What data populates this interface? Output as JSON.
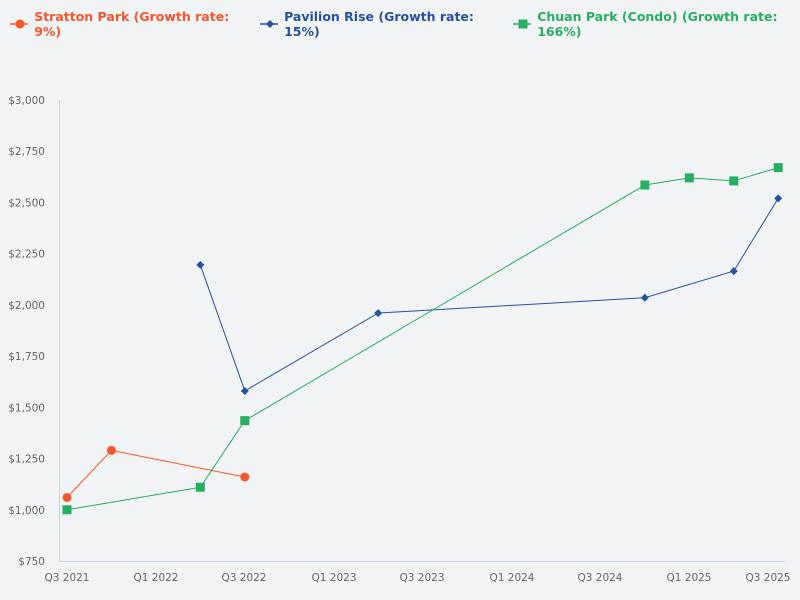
{
  "legend": [
    {
      "label": "Stratton Park (Growth rate: 9%)",
      "color": "#f4572a",
      "marker": "circle"
    },
    {
      "label": "Pavilion Rise (Growth rate: 15%)",
      "color": "#2651a0",
      "marker": "diamond"
    },
    {
      "label": "Chuan Park (Condo) (Growth rate: 166%)",
      "color": "#27ae60",
      "marker": "square"
    }
  ],
  "colors": {
    "background": "#f2f3f5",
    "axis": "#c8d4e6",
    "tick_text": "#666666"
  },
  "chart_data": {
    "type": "line",
    "title": "",
    "xlabel": "",
    "ylabel": "",
    "ylim": [
      750,
      3000
    ],
    "grid": false,
    "legend_position": "top-left",
    "y_ticks": [
      "$750",
      "$1,000",
      "$1,250",
      "$1,500",
      "$1,750",
      "$2,000",
      "$2,250",
      "$2,500",
      "$2,750",
      "$3,000"
    ],
    "x_ticks": [
      "Q3 2021",
      "Q1 2022",
      "Q3 2022",
      "Q1 2023",
      "Q3 2023",
      "Q1 2024",
      "Q3 2024",
      "Q1 2025",
      "Q3 2025"
    ],
    "series": [
      {
        "name": "Stratton Park (Growth rate: 9%)",
        "color": "#f4572a",
        "marker": "circle",
        "x": [
          "Q3 2021",
          "Q4 2021",
          "Q3 2022"
        ],
        "values": [
          1060,
          1290,
          1160
        ]
      },
      {
        "name": "Pavilion Rise (Growth rate: 15%)",
        "color": "#2651a0",
        "marker": "diamond",
        "x": [
          "Q2 2022",
          "Q3 2022",
          "Q2 2023",
          "Q4 2024",
          "Q2 2025",
          "Q3 2025"
        ],
        "values": [
          2195,
          1580,
          1960,
          2035,
          2165,
          2520
        ]
      },
      {
        "name": "Chuan Park (Condo) (Growth rate: 166%)",
        "color": "#27ae60",
        "marker": "square",
        "x": [
          "Q3 2021",
          "Q2 2022",
          "Q3 2022",
          "Q4 2024",
          "Q1 2025",
          "Q2 2025",
          "Q3 2025"
        ],
        "values": [
          1000,
          1110,
          1435,
          2585,
          2620,
          2605,
          2670
        ]
      }
    ]
  }
}
